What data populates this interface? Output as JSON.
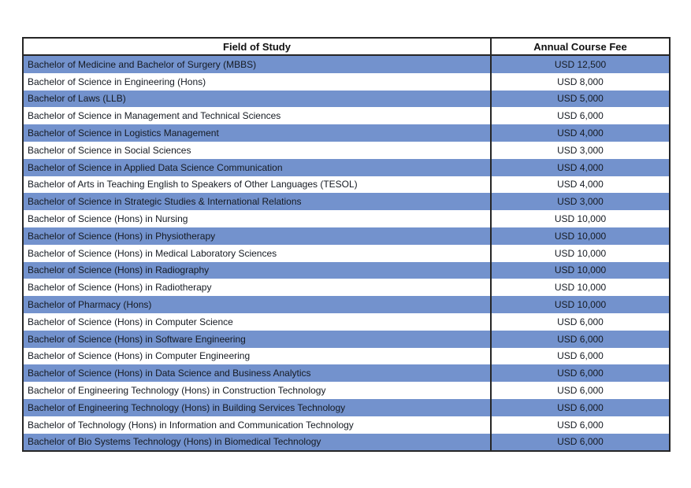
{
  "page": {
    "background_color": "#ffffff"
  },
  "table": {
    "columns": [
      "Field of Study",
      "Annual Course Fee"
    ],
    "band_color": "#7392CD",
    "plain_color": "#ffffff",
    "border_color": "#262626",
    "rows": [
      {
        "field": "Bachelor of Medicine and Bachelor of Surgery (MBBS)",
        "fee": "USD 12,500"
      },
      {
        "field": "Bachelor of Science in Engineering (Hons)",
        "fee": "USD 8,000"
      },
      {
        "field": "Bachelor of Laws (LLB)",
        "fee": "USD 5,000"
      },
      {
        "field": "Bachelor of Science in Management and Technical Sciences",
        "fee": "USD 6,000"
      },
      {
        "field": "Bachelor of Science in Logistics Management",
        "fee": "USD 4,000"
      },
      {
        "field": "Bachelor of Science in Social Sciences",
        "fee": "USD 3,000"
      },
      {
        "field": "Bachelor of Science in Applied Data Science Communication",
        "fee": "USD 4,000"
      },
      {
        "field": "Bachelor of Arts in Teaching English to Speakers of Other Languages (TESOL)",
        "fee": "USD 4,000"
      },
      {
        "field": "Bachelor of Science in Strategic Studies & International Relations",
        "fee": "USD 3,000"
      },
      {
        "field": "Bachelor of Science (Hons) in Nursing",
        "fee": "USD 10,000"
      },
      {
        "field": "Bachelor of Science (Hons) in Physiotherapy",
        "fee": "USD 10,000"
      },
      {
        "field": "Bachelor of Science (Hons) in Medical Laboratory Sciences",
        "fee": "USD 10,000"
      },
      {
        "field": "Bachelor of Science (Hons) in Radiography",
        "fee": "USD 10,000"
      },
      {
        "field": "Bachelor of Science (Hons) in Radiotherapy",
        "fee": "USD 10,000"
      },
      {
        "field": "Bachelor of Pharmacy (Hons)",
        "fee": "USD 10,000"
      },
      {
        "field": "Bachelor of Science (Hons) in Computer Science",
        "fee": "USD 6,000"
      },
      {
        "field": "Bachelor of Science (Hons) in Software Engineering",
        "fee": "USD 6,000"
      },
      {
        "field": "Bachelor of Science (Hons) in Computer Engineering",
        "fee": "USD 6,000"
      },
      {
        "field": "Bachelor of Science (Hons) in Data Science and Business Analytics",
        "fee": "USD 6,000"
      },
      {
        "field": "Bachelor of Engineering Technology (Hons) in Construction Technology",
        "fee": "USD 6,000"
      },
      {
        "field": "Bachelor of Engineering Technology (Hons) in Building Services Technology",
        "fee": "USD 6,000"
      },
      {
        "field": "Bachelor of Technology (Hons) in Information and Communication Technology",
        "fee": "USD 6,000"
      },
      {
        "field": "Bachelor of Bio Systems Technology (Hons) in Biomedical Technology",
        "fee": "USD 6,000"
      }
    ]
  }
}
